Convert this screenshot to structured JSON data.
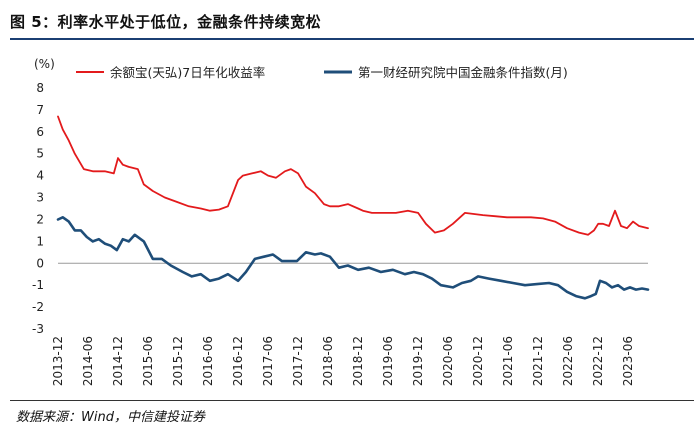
{
  "title": "图 5：利率水平处于低位，金融条件持续宽松",
  "source": "数据来源：Wind，中信建投证券",
  "colors": {
    "rule": "#1b3f73",
    "series1": "#e31a1c",
    "series2": "#1f4e79"
  },
  "chart_data": {
    "type": "line",
    "ylabel": "(%)",
    "ylim": [
      -3,
      8
    ],
    "yticks": [
      8,
      7,
      6,
      5,
      4,
      3,
      2,
      1,
      0,
      -1,
      -2,
      -3
    ],
    "x_range": [
      2013.92,
      2023.75
    ],
    "xticks": [
      "2013-12",
      "2014-06",
      "2014-12",
      "2015-06",
      "2015-12",
      "2016-06",
      "2016-12",
      "2017-06",
      "2017-12",
      "2018-06",
      "2018-12",
      "2019-06",
      "2019-12",
      "2020-06",
      "2020-12",
      "2021-06",
      "2021-12",
      "2022-06",
      "2022-12",
      "2023-06"
    ],
    "legend_position": "top",
    "series": [
      {
        "name": "余额宝(天弘)7日年化收益率",
        "color": "#e31a1c",
        "x": [
          2013.92,
          2014.0,
          2014.1,
          2014.2,
          2014.35,
          2014.5,
          2014.7,
          2014.85,
          2014.92,
          2015.0,
          2015.1,
          2015.25,
          2015.35,
          2015.5,
          2015.7,
          2015.9,
          2016.1,
          2016.3,
          2016.45,
          2016.6,
          2016.75,
          2016.92,
          2017.0,
          2017.15,
          2017.3,
          2017.42,
          2017.55,
          2017.7,
          2017.8,
          2017.92,
          2018.05,
          2018.2,
          2018.35,
          2018.45,
          2018.6,
          2018.75,
          2018.92,
          2019.0,
          2019.15,
          2019.35,
          2019.55,
          2019.75,
          2019.92,
          2020.05,
          2020.2,
          2020.35,
          2020.5,
          2020.7,
          2020.85,
          2021.0,
          2021.2,
          2021.4,
          2021.6,
          2021.8,
          2022.0,
          2022.2,
          2022.4,
          2022.6,
          2022.75,
          2022.85,
          2022.92,
          2023.0,
          2023.1,
          2023.2,
          2023.3,
          2023.4,
          2023.5,
          2023.6,
          2023.75
        ],
        "values": [
          6.7,
          6.1,
          5.6,
          5.0,
          4.3,
          4.2,
          4.2,
          4.1,
          4.8,
          4.5,
          4.4,
          4.3,
          3.6,
          3.3,
          3.0,
          2.8,
          2.6,
          2.5,
          2.4,
          2.45,
          2.6,
          3.8,
          4.0,
          4.1,
          4.2,
          4.0,
          3.9,
          4.2,
          4.3,
          4.1,
          3.5,
          3.2,
          2.7,
          2.6,
          2.6,
          2.7,
          2.5,
          2.4,
          2.3,
          2.3,
          2.3,
          2.4,
          2.3,
          1.8,
          1.4,
          1.5,
          1.8,
          2.3,
          2.25,
          2.2,
          2.15,
          2.1,
          2.1,
          2.1,
          2.05,
          1.9,
          1.6,
          1.4,
          1.3,
          1.5,
          1.8,
          1.8,
          1.7,
          2.4,
          1.7,
          1.6,
          1.9,
          1.7,
          1.6
        ]
      },
      {
        "name": "第一财经研究院中国金融条件指数(月)",
        "color": "#1f4e79",
        "x": [
          2013.92,
          2014.0,
          2014.1,
          2014.2,
          2014.3,
          2014.4,
          2014.5,
          2014.6,
          2014.7,
          2014.8,
          2014.9,
          2015.0,
          2015.1,
          2015.2,
          2015.35,
          2015.5,
          2015.65,
          2015.8,
          2016.0,
          2016.15,
          2016.3,
          2016.45,
          2016.6,
          2016.75,
          2016.92,
          2017.05,
          2017.2,
          2017.35,
          2017.5,
          2017.65,
          2017.75,
          2017.9,
          2018.05,
          2018.2,
          2018.3,
          2018.45,
          2018.6,
          2018.75,
          2018.92,
          2019.1,
          2019.3,
          2019.5,
          2019.7,
          2019.85,
          2020.0,
          2020.15,
          2020.3,
          2020.5,
          2020.65,
          2020.8,
          2020.92,
          2021.1,
          2021.3,
          2021.5,
          2021.7,
          2021.9,
          2022.1,
          2022.25,
          2022.4,
          2022.55,
          2022.7,
          2022.8,
          2022.88,
          2022.95,
          2023.05,
          2023.15,
          2023.25,
          2023.35,
          2023.45,
          2023.55,
          2023.65,
          2023.75
        ],
        "values": [
          2.0,
          2.1,
          1.9,
          1.5,
          1.5,
          1.2,
          1.0,
          1.1,
          0.9,
          0.8,
          0.6,
          1.1,
          1.0,
          1.3,
          1.0,
          0.2,
          0.2,
          -0.1,
          -0.4,
          -0.6,
          -0.5,
          -0.8,
          -0.7,
          -0.5,
          -0.8,
          -0.4,
          0.2,
          0.3,
          0.4,
          0.1,
          0.1,
          0.1,
          0.5,
          0.4,
          0.45,
          0.3,
          -0.2,
          -0.1,
          -0.3,
          -0.2,
          -0.4,
          -0.3,
          -0.5,
          -0.4,
          -0.5,
          -0.7,
          -1.0,
          -1.1,
          -0.9,
          -0.8,
          -0.6,
          -0.7,
          -0.8,
          -0.9,
          -1.0,
          -0.95,
          -0.9,
          -1.0,
          -1.3,
          -1.5,
          -1.6,
          -1.5,
          -1.4,
          -0.8,
          -0.9,
          -1.1,
          -1.0,
          -1.2,
          -1.1,
          -1.2,
          -1.15,
          -1.2
        ]
      }
    ]
  }
}
